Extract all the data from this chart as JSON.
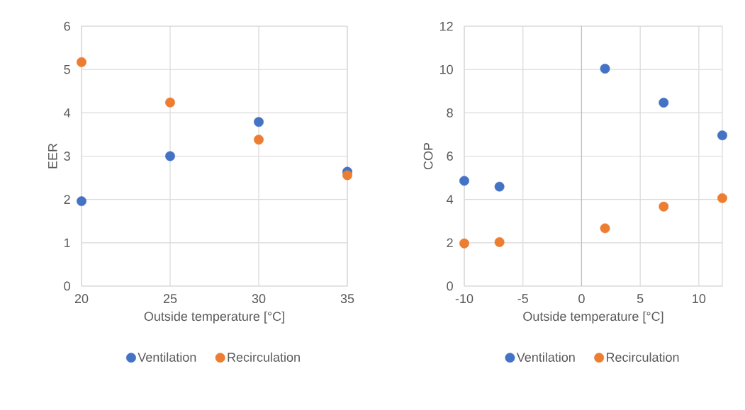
{
  "chart_data": [
    {
      "type": "scatter",
      "xlabel": "Outside temperature [°C]",
      "ylabel": "EER",
      "x": [
        20,
        25,
        30,
        35
      ],
      "xlim": [
        20,
        35
      ],
      "ylim": [
        0,
        6
      ],
      "xticks": [
        20,
        25,
        30,
        35
      ],
      "yticks": [
        0,
        1,
        2,
        3,
        4,
        5,
        6
      ],
      "grid": true,
      "legend": "bottom",
      "marker": "circle",
      "series": [
        {
          "name": "Ventilation",
          "color": "#4472c4",
          "values": [
            1.96,
            3.0,
            3.79,
            2.64
          ]
        },
        {
          "name": "Recirculation",
          "color": "#ed7d31",
          "values": [
            5.17,
            4.24,
            3.38,
            2.56
          ]
        }
      ]
    },
    {
      "type": "scatter",
      "xlabel": "Outside temperature [°C]",
      "ylabel": "COP",
      "x": [
        -10,
        -7,
        2,
        7,
        12
      ],
      "xlim": [
        -10,
        12
      ],
      "ylim": [
        0,
        12
      ],
      "xticks": [
        -10,
        -5,
        0,
        5,
        10
      ],
      "yticks": [
        0,
        2,
        4,
        6,
        8,
        10,
        12
      ],
      "grid": true,
      "legend": "bottom",
      "marker": "circle",
      "ref_lines": [
        {
          "axis": "x",
          "value": 0,
          "color": "#bfbfbf"
        }
      ],
      "series": [
        {
          "name": "Ventilation",
          "color": "#4472c4",
          "values": [
            4.86,
            4.59,
            10.04,
            8.47,
            6.96
          ]
        },
        {
          "name": "Recirculation",
          "color": "#ed7d31",
          "values": [
            1.97,
            2.03,
            2.67,
            3.67,
            4.06
          ]
        }
      ]
    }
  ]
}
